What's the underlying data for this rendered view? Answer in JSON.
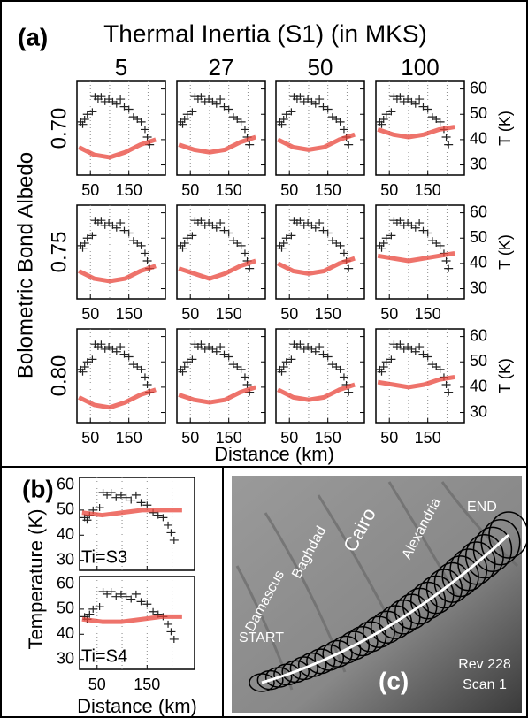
{
  "panel_a": {
    "label": "(a)",
    "title": "Thermal Inertia (S1) (in MKS)",
    "columns": [
      "5",
      "27",
      "50",
      "100"
    ],
    "rows": [
      "0.70",
      "0.75",
      "0.80"
    ],
    "row_axis_label": "Bolometric Bond Albedo",
    "x_label": "Distance (km)",
    "y_label": "T (K)",
    "xlim": [
      15,
      245
    ],
    "xticks": [
      50,
      150
    ],
    "xgrid": [
      50,
      100,
      150,
      200
    ],
    "ylim": [
      26,
      63
    ],
    "yticks": [
      30,
      40,
      50,
      60
    ],
    "model_x": [
      20,
      60,
      100,
      140,
      180,
      220
    ],
    "models": [
      [
        [
          37,
          34,
          33,
          35,
          38,
          40
        ],
        [
          38,
          36,
          35,
          36,
          39,
          41
        ],
        [
          40,
          37,
          36,
          37,
          40,
          42
        ],
        [
          44,
          42,
          41,
          42,
          44,
          45
        ]
      ],
      [
        [
          37,
          34,
          33,
          34,
          37,
          39
        ],
        [
          38,
          36,
          34,
          36,
          39,
          41
        ],
        [
          40,
          37,
          36,
          37,
          40,
          42
        ],
        [
          43,
          42,
          41,
          42,
          43,
          44
        ]
      ],
      [
        [
          36,
          33,
          32,
          34,
          37,
          39
        ],
        [
          37,
          35,
          34,
          35,
          38,
          40
        ],
        [
          39,
          36,
          35,
          36,
          39,
          41
        ],
        [
          42,
          41,
          40,
          41,
          43,
          44
        ]
      ]
    ]
  },
  "observed": {
    "color": "#222222",
    "x": [
      25,
      30,
      35,
      42,
      55,
      62,
      70,
      78,
      88,
      98,
      108,
      118,
      128,
      138,
      150,
      162,
      172,
      182,
      192,
      198,
      204
    ],
    "y": [
      47,
      46,
      48,
      50,
      51,
      57,
      56,
      57,
      55,
      56,
      55,
      54,
      56,
      53,
      52,
      49,
      48,
      47,
      44,
      41,
      38
    ]
  },
  "model_color": "#e8443a",
  "panel_b": {
    "label": "(b)",
    "y_label": "Temperature (K)",
    "x_label": "Distance (km)",
    "xlim": [
      15,
      245
    ],
    "xticks": [
      50,
      150
    ],
    "xgrid": [
      50,
      100,
      150,
      200
    ],
    "ylim": [
      26,
      63
    ],
    "yticks": [
      30,
      40,
      50,
      60
    ],
    "model_x": [
      20,
      60,
      100,
      140,
      180,
      220
    ],
    "panels": [
      {
        "name": "Ti=S3",
        "model": [
          49,
          48,
          49,
          50,
          50,
          50
        ]
      },
      {
        "name": "Ti=S4",
        "model": [
          46,
          45,
          45,
          46,
          47,
          47
        ]
      }
    ]
  },
  "panel_c": {
    "label": "(c)",
    "features": [
      "Damascus",
      "Baghdad",
      "Cairo",
      "Alexandria"
    ],
    "start": "START",
    "end": "END",
    "rev": "Rev 228",
    "scan": "Scan 1"
  }
}
